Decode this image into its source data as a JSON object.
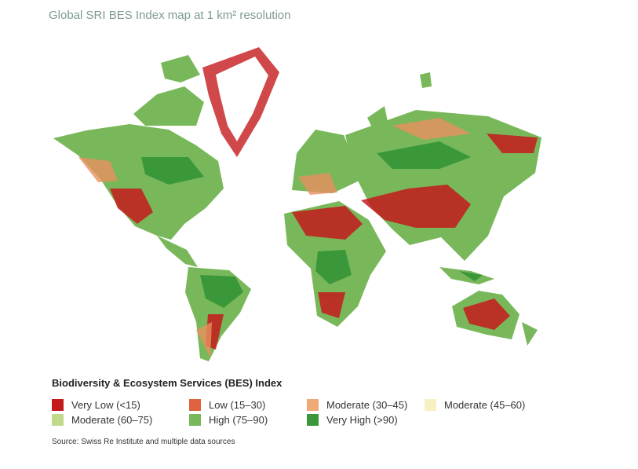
{
  "title": "Global SRI BES Index map at 1 km² resolution",
  "legend": {
    "title": "Biodiversity & Ecosystem Services (BES) Index",
    "items": [
      {
        "label": "Very Low (<15)",
        "color": "#c41a1c"
      },
      {
        "label": "Low (15–30)",
        "color": "#e0633f"
      },
      {
        "label": "Moderate (30–45)",
        "color": "#f0aa78"
      },
      {
        "label": "Moderate (45–60)",
        "color": "#f6f0c2"
      },
      {
        "label": "Moderate (60–75)",
        "color": "#c0d98a"
      },
      {
        "label": "High (75–90)",
        "color": "#79b85a"
      },
      {
        "label": "Very High (>90)",
        "color": "#3a983a"
      }
    ]
  },
  "source": "Source: Swiss Re Institute and multiple data sources"
}
